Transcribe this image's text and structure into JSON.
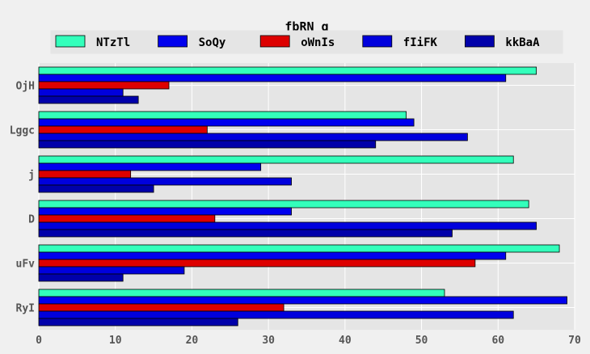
{
  "chart_data": {
    "type": "bar",
    "orientation": "horizontal",
    "title": "fbRN g",
    "xlabel": "",
    "ylabel": "",
    "xlim": [
      0,
      70
    ],
    "xticks": [
      0,
      10,
      20,
      30,
      40,
      50,
      60,
      70
    ],
    "grid": true,
    "legend_position": "top",
    "categories": [
      "OjH",
      "Lggc",
      "j",
      "D",
      "uFv",
      "RyI"
    ],
    "series": [
      {
        "name": "NTzTl",
        "color": "#33ffbb",
        "values": [
          65,
          48,
          62,
          64,
          68,
          53
        ]
      },
      {
        "name": "SoQy",
        "color": "#0000ee",
        "values": [
          61,
          49,
          29,
          33,
          61,
          69
        ]
      },
      {
        "name": "oWnIs",
        "color": "#dd0000",
        "values": [
          17,
          22,
          12,
          23,
          57,
          32
        ]
      },
      {
        "name": "fIiFK",
        "color": "#0000dd",
        "values": [
          11,
          56,
          33,
          65,
          19,
          62
        ]
      },
      {
        "name": "kkBaA",
        "color": "#0000aa",
        "values": [
          13,
          44,
          15,
          54,
          11,
          26
        ]
      }
    ]
  }
}
